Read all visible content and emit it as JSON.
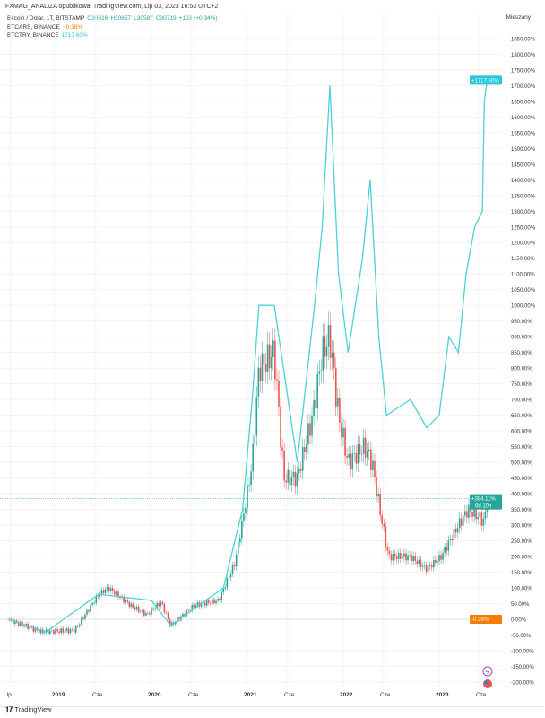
{
  "header": {
    "publisher": "FXMAG_ANALIZA opublikował TradingView.com, Lip 03, 2023 16:53 UTC+2"
  },
  "legend": {
    "main": {
      "symbol": "Bitcoin / Dolar, 1T, BITSTAMP",
      "o": "O30616",
      "h": "H30857",
      "l": "L30587",
      "c": "C30719",
      "chg": "+103 (+0.34%)"
    },
    "btcars": {
      "symbol": "BTCARS, BINANCE",
      "value": "−0.38%"
    },
    "btctry": {
      "symbol": "BTCTRY, BINANCE",
      "value": "1717.60%"
    }
  },
  "scale_mode": "Mieszany",
  "brand": "TradingView",
  "colors": {
    "up": "#26a69a",
    "down": "#ef5350",
    "btctry": "#4dd0d8",
    "btcars": "#f57c00",
    "grid": "#f2f3f5"
  },
  "chart_data": {
    "type": "line",
    "ylim": [
      -225,
      1875
    ],
    "yticks": [
      "1850.00%",
      "1800.00%",
      "1750.00%",
      "1700.00%",
      "1650.00%",
      "1600.00%",
      "1550.00%",
      "1500.00%",
      "1450.00%",
      "1400.00%",
      "1350.00%",
      "1300.00%",
      "1250.00%",
      "1200.00%",
      "1150.00%",
      "1100.00%",
      "1050.00%",
      "1000.00%",
      "950.00%",
      "900.00%",
      "850.00%",
      "800.00%",
      "750.00%",
      "700.00%",
      "650.00%",
      "600.00%",
      "550.00%",
      "500.00%",
      "450.00%",
      "400.00%",
      "350.00%",
      "300.00%",
      "250.00%",
      "200.00%",
      "150.00%",
      "100.00%",
      "50.00%",
      "0.00%",
      "-50.00%",
      "-100.00%",
      "-150.00%",
      "-200.00%"
    ],
    "xticks": [
      {
        "label": "lp",
        "date": "2018.53"
      },
      {
        "label": "2019",
        "date": "2019.0"
      },
      {
        "label": "Cze",
        "date": "2019.42"
      },
      {
        "label": "2020",
        "date": "2020.0"
      },
      {
        "label": "Cze",
        "date": "2020.42"
      },
      {
        "label": "2021",
        "date": "2021.0"
      },
      {
        "label": "Cze",
        "date": "2021.42"
      },
      {
        "label": "2022",
        "date": "2022.0"
      },
      {
        "label": "Cze",
        "date": "2022.42"
      },
      {
        "label": "2023",
        "date": "2023.0"
      },
      {
        "label": "Cze",
        "date": "2023.42"
      }
    ],
    "series": [
      {
        "name": "Bitcoin / Dolar, 1T, BITSTAMP",
        "kind": "candles",
        "last_label": "+384.11%",
        "countdown": "6d 10h",
        "x": [
          2018.5,
          2018.85,
          2019.2,
          2019.45,
          2019.55,
          2019.8,
          2019.95,
          2020.1,
          2020.2,
          2020.45,
          2020.7,
          2020.87,
          2020.97,
          2021.05,
          2021.12,
          2021.28,
          2021.38,
          2021.52,
          2021.68,
          2021.78,
          2021.86,
          2021.95,
          2022.05,
          2022.22,
          2022.3,
          2022.38,
          2022.47,
          2022.7,
          2022.87,
          2023.02,
          2023.2,
          2023.3,
          2023.4,
          2023.47,
          2023.5
        ],
        "y": [
          0,
          -40,
          -35,
          80,
          100,
          40,
          15,
          55,
          -20,
          45,
          60,
          180,
          350,
          500,
          800,
          850,
          450,
          450,
          650,
          850,
          900,
          650,
          500,
          550,
          500,
          350,
          200,
          200,
          160,
          200,
          300,
          350,
          330,
          310,
          384
        ]
      },
      {
        "name": "BTCTRY, BINANCE",
        "kind": "line",
        "last_label": "+1717.60%",
        "x": [
          2018.5,
          2018.9,
          2019.45,
          2020.0,
          2020.2,
          2020.75,
          2020.95,
          2021.05,
          2021.12,
          2021.28,
          2021.52,
          2021.7,
          2021.78,
          2021.86,
          2021.95,
          2022.05,
          2022.2,
          2022.28,
          2022.37,
          2022.45,
          2022.7,
          2022.87,
          2023.0,
          2023.1,
          2023.2,
          2023.28,
          2023.37,
          2023.45,
          2023.47,
          2023.5
        ],
        "y": [
          0,
          -40,
          80,
          60,
          -20,
          100,
          350,
          700,
          1000,
          1000,
          500,
          1000,
          1250,
          1700,
          1100,
          850,
          1150,
          1400,
          900,
          650,
          700,
          610,
          650,
          900,
          850,
          1100,
          1250,
          1300,
          1650,
          1717
        ]
      },
      {
        "name": "BTCARS, BINANCE",
        "kind": "line",
        "last_label": "-0.38%",
        "x": [
          2018.5,
          2023.5
        ],
        "y": [
          0,
          -0.38
        ]
      }
    ]
  }
}
